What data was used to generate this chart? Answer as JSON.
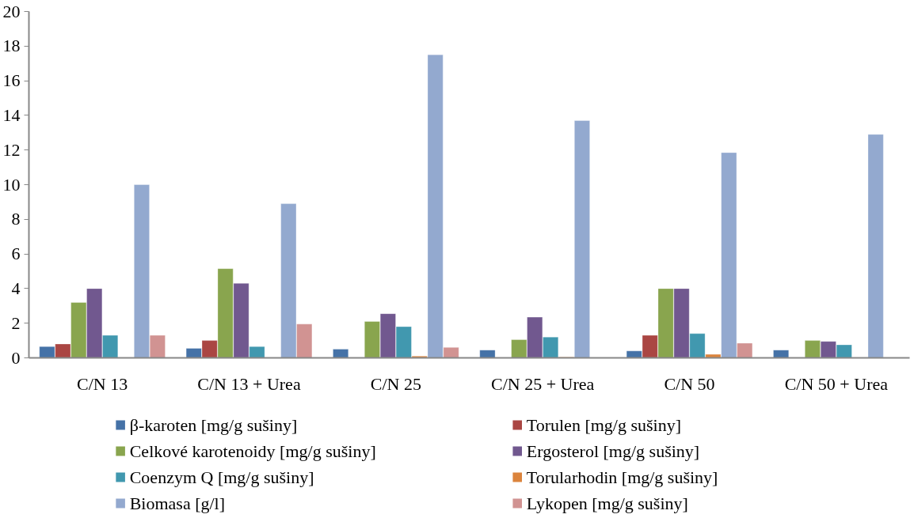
{
  "chart_data": {
    "type": "bar",
    "categories": [
      "C/N 13",
      "C/N 13 + Urea",
      "C/N 25",
      "C/N 25 + Urea",
      "C/N 50",
      "C/N 50 + Urea"
    ],
    "series": [
      {
        "name": "β-karoten [mg/g sušiny]",
        "color": "#4572a7",
        "values": [
          0.65,
          0.55,
          0.5,
          0.45,
          0.4,
          0.45
        ]
      },
      {
        "name": "Torulen [mg/g sušiny]",
        "color": "#aa4643",
        "values": [
          0.8,
          1.0,
          null,
          null,
          1.3,
          null
        ]
      },
      {
        "name": "Celkové karotenoidy [mg/g sušiny]",
        "color": "#89a54e",
        "values": [
          3.2,
          5.15,
          2.1,
          1.05,
          4.0,
          1.0
        ]
      },
      {
        "name": "Ergosterol [mg/g sušiny]",
        "color": "#71588f",
        "values": [
          4.0,
          4.3,
          2.55,
          2.35,
          4.0,
          0.95
        ]
      },
      {
        "name": "Coenzym Q [mg/g sušiny]",
        "color": "#4198af",
        "values": [
          1.3,
          0.65,
          1.8,
          1.2,
          1.4,
          0.75
        ]
      },
      {
        "name": "Torularhodin [mg/g sušiny]",
        "color": "#db843d",
        "values": [
          null,
          null,
          0.1,
          0.05,
          0.2,
          null
        ]
      },
      {
        "name": "Biomasa [g/l]",
        "color": "#93a9cf",
        "values": [
          10.0,
          8.9,
          17.5,
          13.7,
          11.85,
          12.9
        ]
      },
      {
        "name": "Lykopen [mg/g sušiny]",
        "color": "#d19392",
        "values": [
          1.3,
          1.95,
          0.6,
          null,
          0.85,
          null
        ]
      }
    ],
    "ylim": [
      0,
      20
    ],
    "yticks": [
      0,
      2,
      4,
      6,
      8,
      10,
      12,
      14,
      16,
      18,
      20
    ],
    "grid": false,
    "legend": "bottom"
  }
}
